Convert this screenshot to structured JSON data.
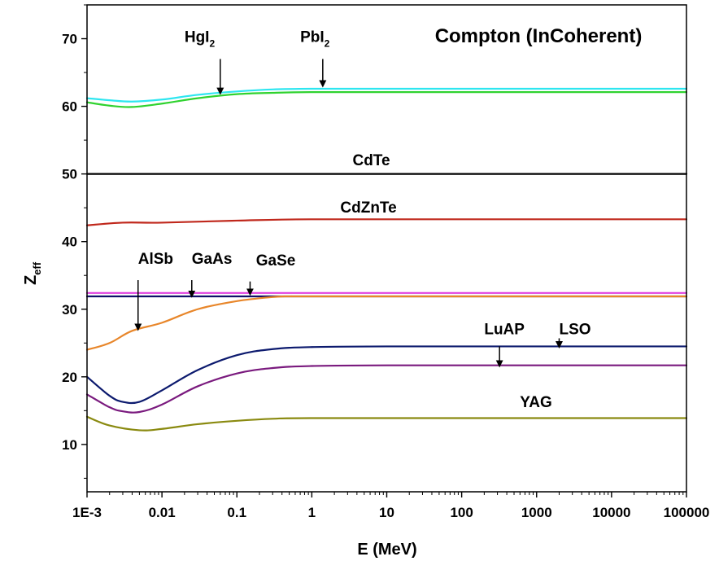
{
  "chart_data": {
    "type": "line",
    "title": "Compton (InCoherent)",
    "xlabel": "E (MeV)",
    "ylabel": {
      "main": "Z",
      "sub": "eff"
    },
    "xscale": "log",
    "xlim": [
      0.001,
      100000
    ],
    "ylim": [
      3,
      75
    ],
    "grid": false,
    "legend": "none",
    "x_ticks": [
      {
        "value": 0.001,
        "label": "1E-3"
      },
      {
        "value": 0.01,
        "label": "0.01"
      },
      {
        "value": 0.1,
        "label": "0.1"
      },
      {
        "value": 1,
        "label": "1"
      },
      {
        "value": 10,
        "label": "10"
      },
      {
        "value": 100,
        "label": "100"
      },
      {
        "value": 1000,
        "label": "1000"
      },
      {
        "value": 10000,
        "label": "10000"
      },
      {
        "value": 100000,
        "label": "100000"
      }
    ],
    "y_ticks": [
      {
        "value": 10,
        "label": "10"
      },
      {
        "value": 20,
        "label": "20"
      },
      {
        "value": 30,
        "label": "30"
      },
      {
        "value": 40,
        "label": "40"
      },
      {
        "value": 50,
        "label": "50"
      },
      {
        "value": 60,
        "label": "60"
      },
      {
        "value": 70,
        "label": "70"
      }
    ],
    "series": [
      {
        "key": "HgI2",
        "color": "#2ee6f0",
        "x": [
          0.001,
          0.002,
          0.004,
          0.01,
          0.03,
          0.1,
          0.3,
          1,
          10,
          100,
          1000,
          100000
        ],
        "y": [
          61.2,
          60.9,
          60.7,
          61.0,
          61.7,
          62.2,
          62.5,
          62.6,
          62.6,
          62.6,
          62.6,
          62.6
        ]
      },
      {
        "key": "PbI2",
        "color": "#2fd22f",
        "x": [
          0.001,
          0.002,
          0.004,
          0.01,
          0.03,
          0.1,
          0.3,
          1,
          10,
          100,
          1000,
          100000
        ],
        "y": [
          60.6,
          60.1,
          59.9,
          60.4,
          61.2,
          61.8,
          62.0,
          62.1,
          62.1,
          62.1,
          62.1,
          62.1
        ]
      },
      {
        "key": "CdTe",
        "color": "#000000",
        "x": [
          0.001,
          100000
        ],
        "y": [
          50.0,
          50.0
        ]
      },
      {
        "key": "CdZnTe",
        "color": "#c0281c",
        "x": [
          0.001,
          0.003,
          0.01,
          0.1,
          1,
          100,
          100000
        ],
        "y": [
          42.4,
          42.8,
          42.8,
          43.1,
          43.3,
          43.3,
          43.3
        ]
      },
      {
        "key": "GaSe",
        "color": "#e040e0",
        "x": [
          0.001,
          100000
        ],
        "y": [
          32.4,
          32.4
        ]
      },
      {
        "key": "GaAs",
        "color": "#10106a",
        "x": [
          0.001,
          100000
        ],
        "y": [
          31.9,
          31.9
        ]
      },
      {
        "key": "AlSb",
        "color": "#e8862a",
        "x": [
          0.001,
          0.002,
          0.004,
          0.01,
          0.03,
          0.1,
          0.3,
          0.5,
          1,
          100,
          100000
        ],
        "y": [
          24.0,
          25.0,
          26.8,
          28.0,
          30.0,
          31.2,
          31.8,
          31.9,
          31.9,
          31.9,
          31.9
        ]
      },
      {
        "key": "LSO",
        "color": "#0c1a6e",
        "x": [
          0.001,
          0.002,
          0.003,
          0.005,
          0.01,
          0.03,
          0.1,
          0.3,
          1,
          10,
          1000,
          100000
        ],
        "y": [
          20.0,
          17.2,
          16.3,
          16.3,
          18.0,
          21.0,
          23.2,
          24.1,
          24.4,
          24.5,
          24.5,
          24.5
        ]
      },
      {
        "key": "LuAP",
        "color": "#7a1a7e",
        "x": [
          0.001,
          0.002,
          0.003,
          0.005,
          0.01,
          0.03,
          0.1,
          0.3,
          1,
          10,
          1000,
          100000
        ],
        "y": [
          17.4,
          15.5,
          14.9,
          14.8,
          15.9,
          18.6,
          20.5,
          21.3,
          21.6,
          21.7,
          21.7,
          21.7
        ]
      },
      {
        "key": "YAG",
        "color": "#8a8a10",
        "x": [
          0.001,
          0.002,
          0.005,
          0.01,
          0.03,
          0.1,
          0.3,
          1,
          100,
          100000
        ],
        "y": [
          14.1,
          12.8,
          12.1,
          12.3,
          13.0,
          13.5,
          13.8,
          13.9,
          13.9,
          13.9
        ]
      }
    ],
    "annotations": [
      {
        "key": "hgi2",
        "text": "HgI",
        "sub": "2",
        "text_x": 0.02,
        "text_y": 69.5,
        "arrow": true,
        "arrow_x": 0.06,
        "arrow_from_y": 67.0,
        "arrow_to_y": 61.9
      },
      {
        "key": "pbi2",
        "text": "PbI",
        "sub": "2",
        "text_x": 0.7,
        "text_y": 69.5,
        "arrow": true,
        "arrow_x": 1.4,
        "arrow_from_y": 67.0,
        "arrow_to_y": 63.0
      },
      {
        "key": "cdte",
        "text": "CdTe",
        "sub": "",
        "text_x": 3.5,
        "text_y": 51.3,
        "arrow": false
      },
      {
        "key": "cdznte",
        "text": "CdZnTe",
        "sub": "",
        "text_x": 2.4,
        "text_y": 44.3,
        "arrow": false
      },
      {
        "key": "alsb",
        "text": "AlSb",
        "sub": "",
        "text_x": 0.0048,
        "text_y": 36.7,
        "arrow": true,
        "arrow_x": 0.0048,
        "arrow_from_y": 34.3,
        "arrow_to_y": 27.0
      },
      {
        "key": "gaas",
        "text": "GaAs",
        "sub": "",
        "text_x": 0.025,
        "text_y": 36.7,
        "arrow": true,
        "arrow_x": 0.025,
        "arrow_from_y": 34.3,
        "arrow_to_y": 31.9
      },
      {
        "key": "gase",
        "text": "GaSe",
        "sub": "",
        "text_x": 0.18,
        "text_y": 36.5,
        "arrow": true,
        "arrow_x": 0.15,
        "arrow_from_y": 34.1,
        "arrow_to_y": 32.2
      },
      {
        "key": "luap",
        "text": "LuAP",
        "sub": "",
        "text_x": 200,
        "text_y": 26.3,
        "arrow": true,
        "arrow_x": 320,
        "arrow_from_y": 24.5,
        "arrow_to_y": 21.6
      },
      {
        "key": "lso",
        "text": "LSO",
        "sub": "",
        "text_x": 2000,
        "text_y": 26.3,
        "arrow": true,
        "arrow_x": 2000,
        "arrow_from_y": 25.7,
        "arrow_to_y": 24.4
      },
      {
        "key": "yag",
        "text": "YAG",
        "sub": "",
        "text_x": 600,
        "text_y": 15.5,
        "arrow": false
      }
    ]
  }
}
